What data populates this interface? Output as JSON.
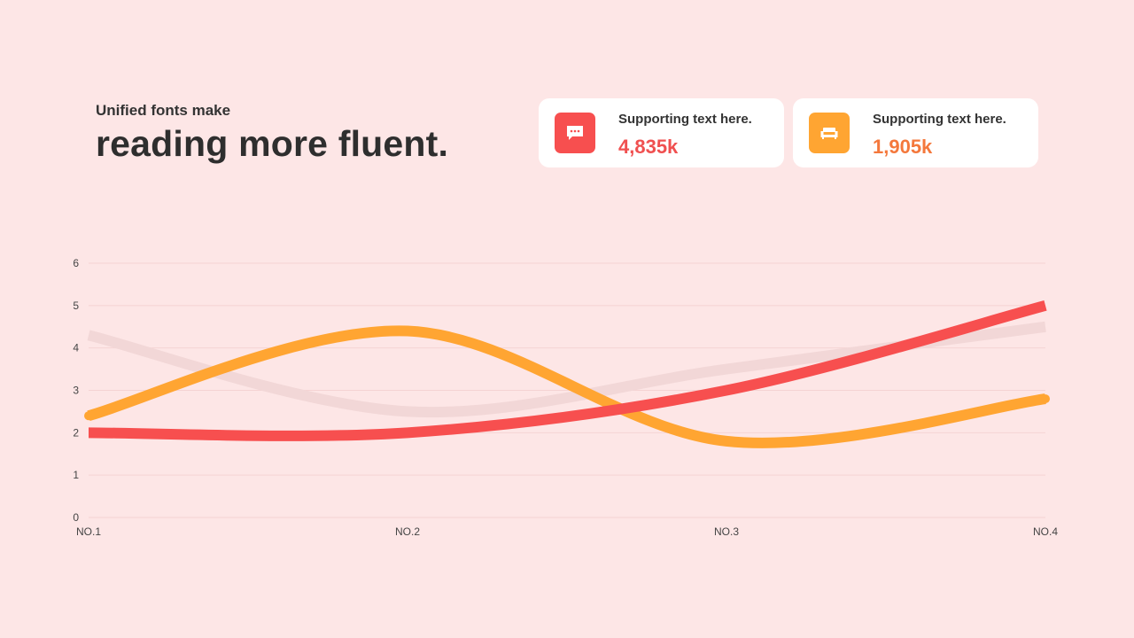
{
  "heading": {
    "subtitle": "Unified fonts make",
    "title": "reading more fluent."
  },
  "cards": [
    {
      "label": "Supporting text here.",
      "value": "4,835k",
      "icon": "chat-icon",
      "color": "#F74F4F",
      "value_color": "#F05050"
    },
    {
      "label": "Supporting text here.",
      "value": "1,905k",
      "icon": "sofa-icon",
      "color": "#FFA532",
      "value_color": "#F4783C"
    }
  ],
  "chart_data": {
    "type": "line",
    "categories": [
      "NO.1",
      "NO.2",
      "NO.3",
      "NO.4"
    ],
    "y_ticks": [
      0,
      1,
      2,
      3,
      4,
      5,
      6
    ],
    "ylim": [
      0,
      6
    ],
    "grid": true,
    "smooth": true,
    "series": [
      {
        "values": [
          4.3,
          2.5,
          3.5,
          4.5
        ],
        "color": "#F2D7D7"
      },
      {
        "values": [
          2.4,
          4.4,
          1.8,
          2.8
        ],
        "color": "#FFA532"
      },
      {
        "values": [
          2.0,
          2.0,
          3.0,
          5.0
        ],
        "color": "#F74F4F"
      }
    ]
  }
}
